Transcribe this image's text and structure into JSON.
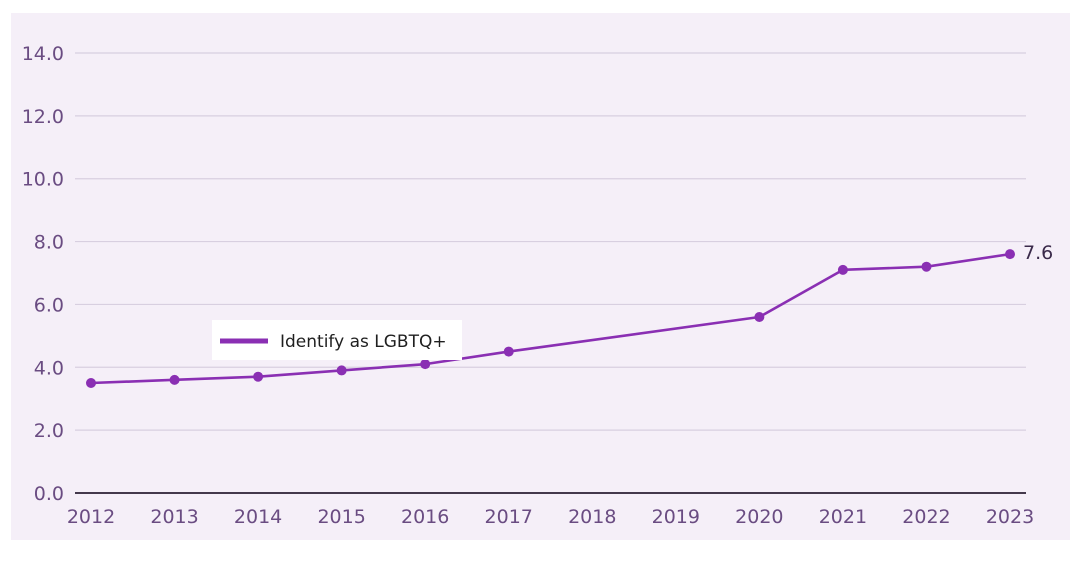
{
  "colors": {
    "plot_background": "#f5eff8",
    "gridline": "#d8cfe0",
    "axis_line": "#2b1f33",
    "series_line": "#8a2fb3",
    "tick_text": "#6a4c82",
    "legend_background": "#ffffff"
  },
  "legend": {
    "label": "Identify as LGBTQ+",
    "placement": "inside-left"
  },
  "chart_data": {
    "type": "line",
    "title": "",
    "xlabel": "",
    "ylabel": "",
    "grid": true,
    "x": [
      2012,
      2013,
      2014,
      2015,
      2016,
      2017,
      2018,
      2019,
      2020,
      2021,
      2022,
      2023
    ],
    "ylim": [
      0,
      14
    ],
    "y_ticks": [
      "0.0",
      "2.0",
      "4.0",
      "6.0",
      "8.0",
      "10.0",
      "12.0",
      "14.0"
    ],
    "x_ticks": [
      "2012",
      "2013",
      "2014",
      "2015",
      "2016",
      "2017",
      "2018",
      "2019",
      "2020",
      "2021",
      "2022",
      "2023"
    ],
    "series": [
      {
        "name": "Identify as LGBTQ+",
        "points": [
          {
            "x": 2012,
            "y": 3.5
          },
          {
            "x": 2013,
            "y": 3.6
          },
          {
            "x": 2014,
            "y": 3.7
          },
          {
            "x": 2015,
            "y": 3.9
          },
          {
            "x": 2016,
            "y": 4.1
          },
          {
            "x": 2017,
            "y": 4.5
          },
          {
            "x": 2020,
            "y": 5.6
          },
          {
            "x": 2021,
            "y": 7.1
          },
          {
            "x": 2022,
            "y": 7.2
          },
          {
            "x": 2023,
            "y": 7.6
          }
        ]
      }
    ],
    "data_labels": [
      {
        "x": 2023,
        "text": "7.6"
      }
    ]
  }
}
